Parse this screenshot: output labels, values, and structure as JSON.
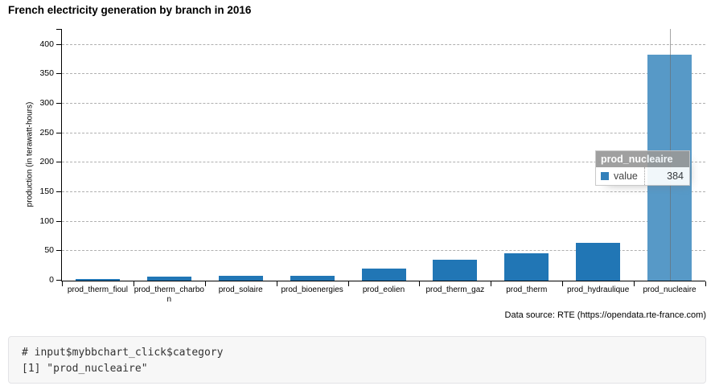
{
  "title": "French electricity generation by branch in 2016",
  "chart_data": {
    "type": "bar",
    "title": "French electricity generation by branch in 2016",
    "categories": [
      "prod_therm_fioul",
      "prod_therm_charbon",
      "prod_solaire",
      "prod_bioenergies",
      "prod_eolien",
      "prod_therm_gaz",
      "prod_therm",
      "prod_hydraulique",
      "prod_nucleaire"
    ],
    "values": [
      3.2,
      7.3,
      8.3,
      8.5,
      20.7,
      35.4,
      45.9,
      63.9,
      384
    ],
    "xlabel": "",
    "ylabel": "production (in terawatt-hours)",
    "yticks": [
      0,
      50,
      100,
      150,
      200,
      250,
      300,
      350,
      400
    ],
    "ylim": [
      0,
      427
    ],
    "grid": "horizontal-dashed",
    "legend": "none",
    "bar_color": "#2176b5",
    "highlighted_category": "prod_nucleaire",
    "highlighted_bar_color": "#5799c7",
    "source_note": "Data source: RTE (https://opendata.rte-france.com)"
  },
  "tooltip": {
    "title": "prod_nucleaire",
    "series_label": "value",
    "value": "384",
    "swatch_color": "#2176b5"
  },
  "console": {
    "line1": "# input$mybbchart_click$category",
    "line2": "[1] \"prod_nucleaire\""
  }
}
